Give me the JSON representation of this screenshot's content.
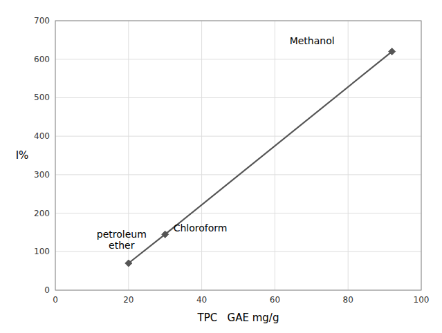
{
  "chart_data": {
    "type": "line",
    "x": [
      20,
      30,
      92
    ],
    "values": [
      70,
      145,
      620
    ],
    "annotations": [
      "petroleum\nether",
      "Chloroform",
      "Methanol"
    ],
    "x_label": "TPC   GAE mg/g",
    "y_label": "I%",
    "xlim": [
      0,
      100
    ],
    "ylim": [
      0,
      700
    ],
    "xticks": [
      0,
      20,
      40,
      60,
      80,
      100
    ],
    "yticks": [
      0,
      100,
      200,
      300,
      400,
      500,
      600,
      700
    ],
    "color": "#555555",
    "marker": "diamond",
    "grid": true
  }
}
